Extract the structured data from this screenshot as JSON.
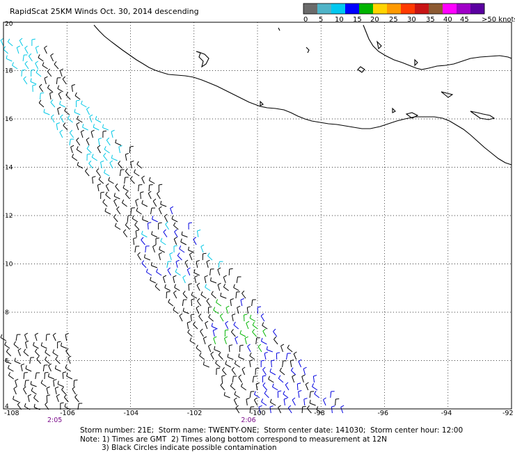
{
  "title": "RapidScat 25KM Winds Oct. 30, 2014 descending",
  "colorbar": {
    "labels": [
      "0",
      "5",
      "10",
      "15",
      "20",
      "25",
      "30",
      "35",
      "40",
      "45",
      ">50 knots"
    ],
    "colors": [
      "#6a6a6a",
      "#4fb4c8",
      "#00c8f0",
      "#0000ff",
      "#00b400",
      "#ffd400",
      "#ff9a00",
      "#ff3a00",
      "#c81414",
      "#8c5a32",
      "#ff00ff",
      "#a000c8",
      "#5a00a0"
    ]
  },
  "map": {
    "lon_range": [
      -108,
      -92
    ],
    "lat_range": [
      4,
      20
    ],
    "lon_labels": [
      "-108",
      "-106",
      "-104",
      "-102",
      "-100",
      "-98",
      "-96",
      "-94",
      "-92"
    ],
    "lat_labels": [
      "20",
      "18",
      "16",
      "14",
      "12",
      "10",
      "8",
      "6",
      "4"
    ],
    "grid": "dotted",
    "swath_times": [
      {
        "label": "2:05",
        "lon": -106.4
      },
      {
        "label": "2:06",
        "lon": -100.3
      }
    ],
    "barb_colors": {
      "black": "#000000",
      "cyan": "#00c8e6",
      "blue": "#0000e0",
      "green": "#00b400"
    }
  },
  "footer": {
    "line1": "Storm number: 21E;  Storm name: TWENTY-ONE;  Storm center date: 141030;  Storm center hour: 12:00",
    "line2": "Note: 1) Times are GMT  2) Times along bottom correspond to measurement at 12N",
    "line3": "3) Black Circles indicate possible contamination"
  }
}
